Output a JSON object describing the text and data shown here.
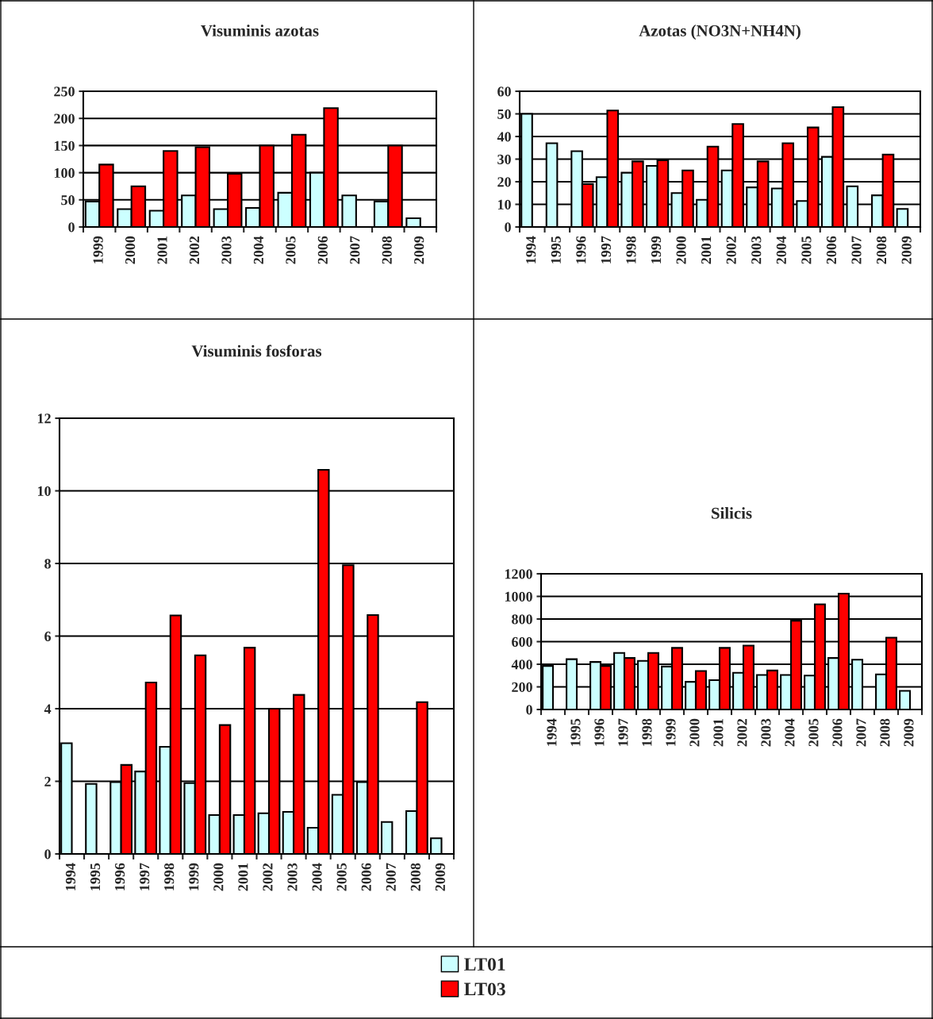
{
  "chart_data": [
    {
      "type": "bar",
      "title": "Visuminis azotas",
      "categories": [
        "1999",
        "2000",
        "2001",
        "2002",
        "2003",
        "2004",
        "2005",
        "2006",
        "2007",
        "2008",
        "2009"
      ],
      "series": [
        {
          "name": "LT01",
          "color": "#ccffff",
          "values": [
            47,
            33,
            30,
            58,
            33,
            35,
            63,
            100,
            58,
            47,
            16
          ]
        },
        {
          "name": "LT03",
          "color": "#ff0000",
          "values": [
            115,
            75,
            140,
            147,
            98,
            150,
            170,
            219,
            null,
            150,
            null
          ]
        }
      ],
      "ylim": [
        0,
        250
      ],
      "yticks": [
        0,
        50,
        100,
        150,
        200,
        250
      ],
      "grid": "y",
      "legend": "bottom"
    },
    {
      "type": "bar",
      "title": "Azotas (NO3N+NH4N)",
      "categories": [
        "1994",
        "1995",
        "1996",
        "1997",
        "1998",
        "1999",
        "2000",
        "2001",
        "2002",
        "2003",
        "2004",
        "2005",
        "2006",
        "2007",
        "2008",
        "2009"
      ],
      "series": [
        {
          "color": "#ccffff",
          "values": [
            50,
            37,
            33.5,
            22,
            24,
            27,
            15,
            12,
            25,
            17.5,
            17,
            11.5,
            31,
            18,
            14,
            8
          ]
        },
        {
          "color": "#ff0000",
          "values": [
            null,
            null,
            19,
            51.5,
            29,
            29.5,
            25,
            35.5,
            45.5,
            29,
            37,
            44,
            53,
            null,
            32,
            null
          ]
        }
      ],
      "ylim": [
        0,
        60
      ],
      "yticks": [
        0,
        10,
        20,
        30,
        40,
        50,
        60
      ],
      "grid": "y"
    },
    {
      "type": "bar",
      "title": "Visuminis fosforas",
      "categories": [
        "1994",
        "1995",
        "1996",
        "1997",
        "1998",
        "1999",
        "2000",
        "2001",
        "2002",
        "2003",
        "2004",
        "2005",
        "2006",
        "2007",
        "2008",
        "2009"
      ],
      "series": [
        {
          "color": "#ccffff",
          "values": [
            3.05,
            1.93,
            1.98,
            2.27,
            2.95,
            1.95,
            1.07,
            1.07,
            1.12,
            1.16,
            0.72,
            1.63,
            1.98,
            0.88,
            1.18,
            0.43
          ]
        },
        {
          "color": "#ff0000",
          "values": [
            null,
            null,
            2.45,
            4.72,
            6.57,
            5.47,
            3.55,
            5.68,
            4.0,
            4.38,
            10.58,
            7.95,
            6.58,
            null,
            4.18,
            null
          ]
        }
      ],
      "ylim": [
        0,
        12
      ],
      "yticks": [
        0,
        2,
        4,
        6,
        8,
        10,
        12
      ],
      "grid": "y"
    },
    {
      "type": "bar",
      "title": "Silicis",
      "categories": [
        "1994",
        "1995",
        "1996",
        "1997",
        "1998",
        "1999",
        "2000",
        "2001",
        "2002",
        "2003",
        "2004",
        "2005",
        "2006",
        "2007",
        "2008",
        "2009"
      ],
      "series": [
        {
          "color": "#ccffff",
          "values": [
            385,
            445,
            420,
            500,
            430,
            380,
            245,
            260,
            325,
            305,
            305,
            300,
            455,
            440,
            310,
            165
          ]
        },
        {
          "color": "#ff0000",
          "values": [
            null,
            null,
            385,
            455,
            500,
            545,
            340,
            545,
            565,
            345,
            785,
            930,
            1025,
            null,
            635,
            null
          ]
        }
      ],
      "ylim": [
        0,
        1200
      ],
      "yticks": [
        0,
        200,
        400,
        600,
        800,
        1000,
        1200
      ],
      "grid": "y"
    }
  ]
}
